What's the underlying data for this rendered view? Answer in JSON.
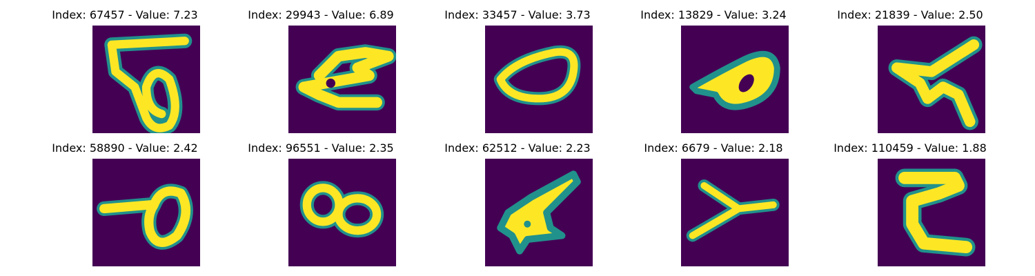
{
  "figure": {
    "colors": {
      "background": "#440154",
      "edge": "#21918c",
      "mid": "#5ec962",
      "stroke": "#fde725"
    },
    "panels": [
      {
        "title": "Index: 67457 - Value: 7.23",
        "glyph": "loop-digit-5"
      },
      {
        "title": "Index: 29943 - Value: 6.89",
        "glyph": "horizontal-scribble"
      },
      {
        "title": "Index: 33457 - Value: 3.73",
        "glyph": "oval-zero"
      },
      {
        "title": "Index: 13829 - Value: 3.24",
        "glyph": "tilted-loop"
      },
      {
        "title": "Index: 21839 - Value: 2.50",
        "glyph": "zigzag"
      },
      {
        "title": "Index: 58890 - Value: 2.42",
        "glyph": "loop-with-tail"
      },
      {
        "title": "Index: 96551 - Value: 2.35",
        "glyph": "eight"
      },
      {
        "title": "Index: 62512 - Value: 2.23",
        "glyph": "star-blob"
      },
      {
        "title": "Index: 6679 - Value: 2.18",
        "glyph": "y-shape"
      },
      {
        "title": "Index: 110459 - Value: 1.88",
        "glyph": "c-shape"
      }
    ]
  }
}
